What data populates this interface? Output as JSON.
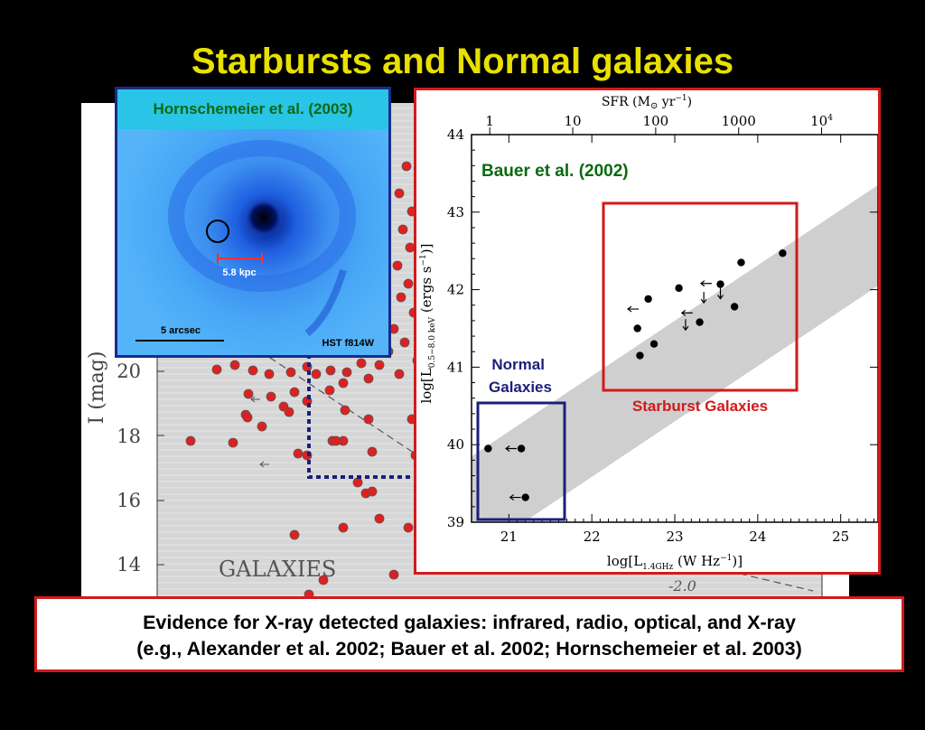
{
  "slide_title": "Starbursts and Normal galaxies",
  "caption": {
    "line1": "Evidence for X-ray detected galaxies: infrared, radio, optical, and X-ray",
    "line2": "(e.g., Alexander et al. 2002; Bauer et al. 2002; Hornschemeier et al. 2003)"
  },
  "image_panel": {
    "title": "Hornschemeier et al. (2003)",
    "scale_kpc": "5.8 kpc",
    "scale_arcsec": "5 arcsec",
    "filter": "HST f814W"
  },
  "background_plot": {
    "ylabel": "I (mag)",
    "yticks": [
      "20",
      "18",
      "16",
      "14"
    ],
    "label": "GALAXIES",
    "annotation": "-2.0"
  },
  "chart_data": {
    "type": "scatter",
    "title": "Bauer et al. (2002)",
    "xlabel": "log[L1.4GHz (W Hz−1)]",
    "xlabel_main": "log[L",
    "xlabel_sub": "1.4GHz",
    "xlabel_tail": " (W Hz",
    "xlabel_exp": "−1",
    "xlabel_close": ")]",
    "ylabel": "log[L0.5−8.0 keV (ergs s−1)]",
    "ylabel_main": "log[L",
    "ylabel_sub": "0.5−8.0 keV",
    "ylabel_tail": " (ergs s",
    "ylabel_exp": "−1",
    "ylabel_close": ")]",
    "top_axis_label": "SFR (M",
    "top_axis_label_tail": " yr",
    "top_axis_label_exp": "−1",
    "top_axis_label_close": ")",
    "xlim": [
      20.55,
      25.45
    ],
    "ylim": [
      39,
      44
    ],
    "xticks": [
      21,
      22,
      23,
      24,
      25
    ],
    "yticks": [
      39,
      40,
      41,
      42,
      43,
      44
    ],
    "top_ticks": [
      {
        "label": "1",
        "x": 20.77
      },
      {
        "label": "10",
        "x": 21.77
      },
      {
        "label": "100",
        "x": 22.77
      },
      {
        "label": "1000",
        "x": 23.77
      },
      {
        "label": "10",
        "exp": "4",
        "x": 24.77
      }
    ],
    "band": [
      {
        "x": 20.55,
        "ylow": 38.55,
        "yhigh": 39.85
      },
      {
        "x": 25.45,
        "ylow": 42.05,
        "yhigh": 43.35
      }
    ],
    "points": [
      {
        "x": 20.75,
        "y": 39.95,
        "limit": ""
      },
      {
        "x": 21.15,
        "y": 39.95,
        "limit": "left"
      },
      {
        "x": 21.2,
        "y": 39.32,
        "limit": "left"
      },
      {
        "x": 22.55,
        "y": 41.5,
        "limit": ""
      },
      {
        "x": 22.58,
        "y": 41.15,
        "limit": ""
      },
      {
        "x": 22.68,
        "y": 41.88,
        "limit": ""
      },
      {
        "x": 22.75,
        "y": 41.3,
        "limit": ""
      },
      {
        "x": 23.05,
        "y": 42.02,
        "limit": ""
      },
      {
        "x": 23.3,
        "y": 41.58,
        "limit": ""
      },
      {
        "x": 23.55,
        "y": 42.07,
        "limit": "down"
      },
      {
        "x": 23.72,
        "y": 41.78,
        "limit": ""
      },
      {
        "x": 23.8,
        "y": 42.35,
        "limit": ""
      },
      {
        "x": 24.3,
        "y": 42.47,
        "limit": ""
      }
    ],
    "arrows": [
      {
        "x": 22.5,
        "y": 41.75,
        "dir": "left"
      },
      {
        "x": 23.15,
        "y": 41.7,
        "dir": "left"
      },
      {
        "x": 23.38,
        "y": 42.08,
        "dir": "left"
      },
      {
        "x": 23.35,
        "y": 41.9,
        "dir": "down"
      },
      {
        "x": 23.13,
        "y": 41.55,
        "dir": "down"
      }
    ],
    "groups": [
      {
        "name": "Normal Galaxies",
        "label_line1": "Normal",
        "label_line2": "Galaxies",
        "color": "#1a1f7a"
      },
      {
        "name": "Starburst Galaxies",
        "label_line1": "Starburst Galaxies",
        "color": "#d31a1a"
      }
    ]
  },
  "colors": {
    "title": "#e8e000",
    "red": "#d31a1a",
    "navy": "#1a1f7a",
    "green": "#0a6a10"
  }
}
